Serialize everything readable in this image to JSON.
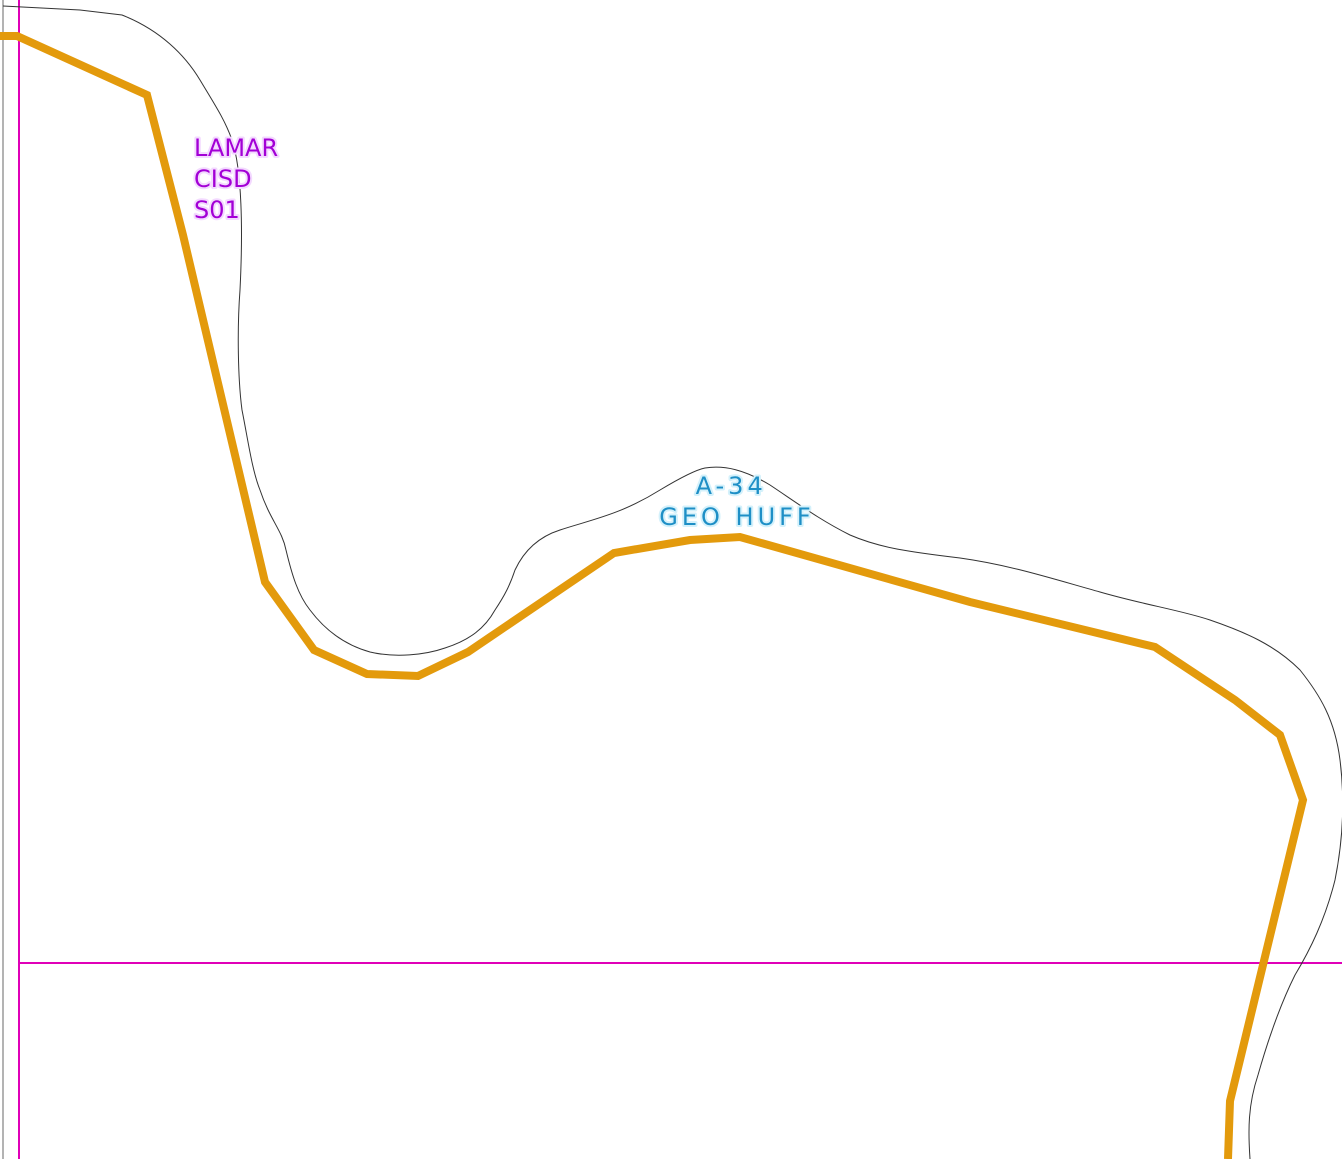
{
  "map": {
    "colors": {
      "background": "#ffffff",
      "grid_line": "#e000b8",
      "border_line": "#9a9a9a",
      "boundary_line": "#e39a0c",
      "creek_line": "#333333",
      "district_label": "#a300d6",
      "abstract_label": "#1e8fc6"
    },
    "district_label": {
      "line1": "LAMAR",
      "line2": "CISD",
      "line3": "S01"
    },
    "abstract_label": {
      "number": "A-34",
      "name": "GEO HUFF"
    }
  }
}
